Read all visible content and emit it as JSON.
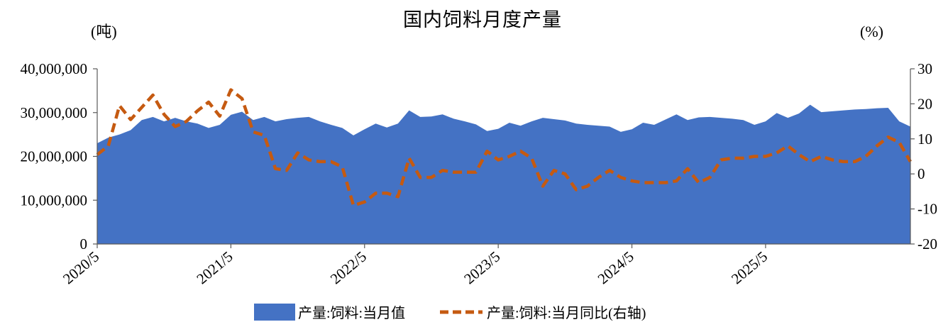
{
  "chart_data": {
    "type": "area",
    "title": "国内饲料月度产量",
    "left_unit": "(吨)",
    "right_unit": "(%)",
    "left_axis": {
      "ylim": [
        0,
        40000000
      ],
      "ticks": [
        0,
        10000000,
        20000000,
        30000000,
        40000000
      ],
      "tick_labels": [
        "0",
        "10,000,000",
        "20,000,000",
        "30,000,000",
        "40,000,000"
      ]
    },
    "right_axis": {
      "ylim": [
        -20,
        30
      ],
      "ticks": [
        -20,
        -10,
        0,
        10,
        20,
        30
      ],
      "tick_labels": [
        "-20",
        "-10",
        "0",
        "10",
        "20",
        "30"
      ]
    },
    "x_tick_labels": [
      "2020/5",
      "2021/5",
      "2022/5",
      "2023/5",
      "2024/5",
      "2025/5"
    ],
    "x": [
      "2020/5",
      "2020/6",
      "2020/7",
      "2020/8",
      "2020/9",
      "2020/10",
      "2020/11",
      "2020/12",
      "2021/1",
      "2021/2",
      "2021/3",
      "2021/4",
      "2021/5",
      "2021/6",
      "2021/7",
      "2021/8",
      "2021/9",
      "2021/10",
      "2021/11",
      "2021/12",
      "2022/1",
      "2022/2",
      "2022/3",
      "2022/4",
      "2022/5",
      "2022/6",
      "2022/7",
      "2022/8",
      "2022/9",
      "2022/10",
      "2022/11",
      "2022/12",
      "2023/1",
      "2023/2",
      "2023/3",
      "2023/4",
      "2023/5",
      "2023/6",
      "2023/7",
      "2023/8",
      "2023/9",
      "2023/10",
      "2023/11",
      "2023/12",
      "2024/1",
      "2024/2",
      "2024/3",
      "2024/4",
      "2024/5",
      "2024/6",
      "2024/7",
      "2024/8",
      "2024/9",
      "2024/10",
      "2024/11",
      "2024/12",
      "2025/1",
      "2025/2",
      "2025/3",
      "2025/4",
      "2025/5",
      "2025/6",
      "2025/7",
      "2025/8",
      "2025/9",
      "2025/10",
      "2025/11",
      "2025/12",
      "2026/1",
      "2026/2",
      "2026/3",
      "2026/4",
      "2026/5",
      "2026/6"
    ],
    "series": [
      {
        "name": "产量:饲料:当月值",
        "axis": "left",
        "type": "area",
        "color": "#4472C4",
        "values": [
          23000000,
          24300000,
          25000000,
          26000000,
          28300000,
          29000000,
          28000000,
          28800000,
          28000000,
          27500000,
          26500000,
          27200000,
          29500000,
          30200000,
          28300000,
          29000000,
          28000000,
          28500000,
          28800000,
          29000000,
          28000000,
          27200000,
          26500000,
          24800000,
          26200000,
          27500000,
          26600000,
          27500000,
          30500000,
          29000000,
          29100000,
          29600000,
          28600000,
          28000000,
          27300000,
          25800000,
          26300000,
          27700000,
          27000000,
          28000000,
          28800000,
          28500000,
          28200000,
          27500000,
          27200000,
          27000000,
          26800000,
          25600000,
          26200000,
          27700000,
          27200000,
          28400000,
          29600000,
          28300000,
          28900000,
          29000000,
          28800000,
          28600000,
          28300000,
          27200000,
          28000000,
          29900000,
          28800000,
          29800000,
          31800000,
          30100000,
          30300000,
          30500000,
          30700000,
          30800000,
          31000000,
          31100000,
          28000000,
          26800000
        ]
      },
      {
        "name": "产量:饲料:当月同比(右轴)",
        "axis": "right",
        "type": "line",
        "color": "#C55A11",
        "values": [
          5.5,
          8,
          19.5,
          15.5,
          19,
          22.5,
          17,
          13.5,
          15,
          18,
          20.5,
          16.5,
          24,
          21.5,
          12,
          11,
          1.5,
          1,
          6,
          4,
          3.5,
          3.5,
          2,
          -9,
          -8,
          -5.5,
          -5.5,
          -6.5,
          4.5,
          -1,
          -1,
          1,
          0.5,
          0.5,
          0.5,
          6.5,
          4,
          5,
          6.5,
          4.5,
          -3.5,
          1,
          0,
          -4.5,
          -3.5,
          -1,
          1,
          -1,
          -2,
          -2.5,
          -2.5,
          -2.5,
          -2,
          1.5,
          -2.5,
          -1,
          4,
          4.5,
          4.5,
          5,
          5,
          6,
          8,
          5.5,
          3.5,
          5,
          4,
          3.5,
          3.5,
          5,
          8,
          10.5,
          9,
          3.5
        ]
      }
    ],
    "legend": {
      "position": "bottom",
      "items": [
        {
          "label": "产量:饲料:当月值",
          "color": "#4472C4",
          "kind": "area"
        },
        {
          "label": "产量:饲料:当月同比(右轴)",
          "color": "#C55A11",
          "kind": "dashed-line"
        }
      ]
    },
    "grid": false
  }
}
